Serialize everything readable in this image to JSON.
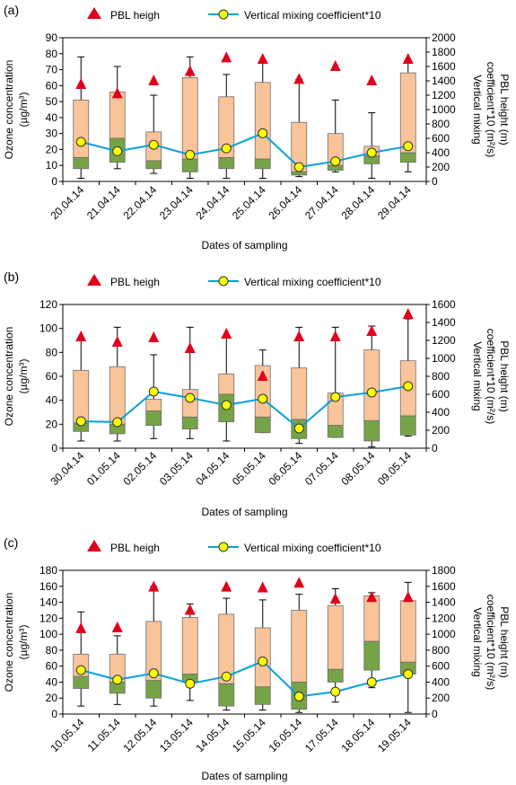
{
  "colors": {
    "box_upper": "#F9C49A",
    "box_lower": "#77A347",
    "box_stroke": "#6E6E6E",
    "pbl_marker": "#E0001B",
    "mix_line": "#0AA0DA",
    "mix_marker_fill": "#FFFF00",
    "mix_marker_stroke": "#333333"
  },
  "legend": {
    "pbl_label": "PBL heigh",
    "mix_label": "Vertical mixing coefficient*10"
  },
  "chart_data": [
    {
      "panel_label": "(a)",
      "type": "box",
      "xlabel": "Dates of sampling",
      "ylabel": "Ozone concentration (µg/m³)",
      "ylabel_line1": "Ozone concentration",
      "ylabel_line2": "(µg/m³)",
      "y2label_line1": "Vertical mixing",
      "y2label_line2": "coefficient*10 (m²/s)",
      "y2label_line3": "PBL height (m)",
      "ylim": [
        0,
        90
      ],
      "yticks": [
        0,
        10,
        20,
        30,
        40,
        50,
        60,
        70,
        80,
        90
      ],
      "y2lim": [
        0,
        2000
      ],
      "y2ticks": [
        0,
        200,
        400,
        600,
        800,
        1000,
        1200,
        1400,
        1600,
        1800,
        2000
      ],
      "categories": [
        "20.04.14",
        "21.04.14",
        "22.04.14",
        "23.04.14",
        "24.04.14",
        "25.04.14",
        "26.04.14",
        "27.04.14",
        "28.04.14",
        "29.04.14"
      ],
      "boxes": [
        {
          "min": 2,
          "q1": 8,
          "median": 15,
          "q3": 51,
          "max": 78
        },
        {
          "min": 8,
          "q1": 12,
          "median": 27,
          "q3": 56,
          "max": 72
        },
        {
          "min": 5,
          "q1": 8,
          "median": 13,
          "q3": 31,
          "max": 54
        },
        {
          "min": 2,
          "q1": 6,
          "median": 14,
          "q3": 65,
          "max": 78
        },
        {
          "min": 2,
          "q1": 8,
          "median": 15,
          "q3": 53,
          "max": 67
        },
        {
          "min": 2,
          "q1": 8,
          "median": 14,
          "q3": 62,
          "max": 75
        },
        {
          "min": 3,
          "q1": 4,
          "median": 6,
          "q3": 37,
          "max": 64
        },
        {
          "min": 6,
          "q1": 7,
          "median": 10,
          "q3": 30,
          "max": 51
        },
        {
          "min": 2,
          "q1": 11,
          "median": 16,
          "q3": 22,
          "max": 43
        },
        {
          "min": 6,
          "q1": 12,
          "median": 18,
          "q3": 68,
          "max": 75
        }
      ],
      "pbl_height": [
        1350,
        1220,
        1400,
        1530,
        1720,
        1700,
        1420,
        1600,
        1400,
        1700
      ],
      "mixing_coefficient_x10": [
        550,
        420,
        510,
        370,
        460,
        670,
        200,
        280,
        400,
        490
      ]
    },
    {
      "panel_label": "(b)",
      "type": "box",
      "xlabel": "Dates of sampling",
      "ylabel": "Ozone concentration (µg/m³)",
      "ylabel_line1": "Ozone concentration",
      "ylabel_line2": "(µg/m³)",
      "y2label_line1": "Vertical mixing",
      "y2label_line2": "coefficient*10 (m²/s)",
      "y2label_line3": "PBL height (m)",
      "ylim": [
        0,
        120
      ],
      "yticks": [
        0,
        20,
        40,
        60,
        80,
        100,
        120
      ],
      "y2lim": [
        0,
        1600
      ],
      "y2ticks": [
        0,
        200,
        400,
        600,
        800,
        1000,
        1200,
        1400,
        1600
      ],
      "categories": [
        "30.04.14",
        "01.05.14",
        "02.05.14",
        "03.05.14",
        "04.05.14",
        "05.05.14",
        "06.05.14",
        "07.05.14",
        "08.05.14",
        "09.05.14"
      ],
      "boxes": [
        {
          "min": 6,
          "q1": 14,
          "median": 21,
          "q3": 65,
          "max": 92
        },
        {
          "min": 6,
          "q1": 12,
          "median": 20,
          "q3": 68,
          "max": 101
        },
        {
          "min": 8,
          "q1": 19,
          "median": 31,
          "q3": 41,
          "max": 78
        },
        {
          "min": 8,
          "q1": 16,
          "median": 26,
          "q3": 49,
          "max": 101
        },
        {
          "min": 6,
          "q1": 22,
          "median": 45,
          "q3": 62,
          "max": 94
        },
        {
          "min": 13,
          "q1": 13,
          "median": 26,
          "q3": 69,
          "max": 82
        },
        {
          "min": 4,
          "q1": 8,
          "median": 24,
          "q3": 67,
          "max": 101
        },
        {
          "min": 9,
          "q1": 9,
          "median": 19,
          "q3": 46,
          "max": 101
        },
        {
          "min": 1,
          "q1": 6,
          "median": 23,
          "q3": 82,
          "max": 102
        },
        {
          "min": 10,
          "q1": 11,
          "median": 27,
          "q3": 73,
          "max": 108
        }
      ],
      "pbl_height": [
        1240,
        1180,
        1230,
        1110,
        1270,
        800,
        1240,
        1240,
        1300,
        1490
      ],
      "mixing_coefficient_x10": [
        300,
        290,
        630,
        560,
        480,
        550,
        220,
        570,
        620,
        690
      ]
    },
    {
      "panel_label": "(c)",
      "type": "box",
      "xlabel": "Dates of sampling",
      "ylabel": "Ozone concentration (µg/m³)",
      "ylabel_line1": "Ozone concentration",
      "ylabel_line2": "(µg/m³)",
      "y2label_line1": "Vertical mixing",
      "y2label_line2": "coefficient*10 (m²/s)",
      "y2label_line3": "PBL height (m)",
      "ylim": [
        0,
        180
      ],
      "yticks": [
        0,
        20,
        40,
        60,
        80,
        100,
        120,
        140,
        160,
        180
      ],
      "y2lim": [
        0,
        1800
      ],
      "y2ticks": [
        0,
        200,
        400,
        600,
        800,
        1000,
        1200,
        1400,
        1600,
        1800
      ],
      "categories": [
        "10.05.14",
        "11.05.14",
        "12.05.14",
        "13.05.14",
        "14.05.14",
        "15.05.14",
        "16.05.14",
        "17.05.14",
        "18.05.14",
        "19.05.14"
      ],
      "boxes": [
        {
          "min": 10,
          "q1": 32,
          "median": 47,
          "q3": 75,
          "max": 128
        },
        {
          "min": 12,
          "q1": 26,
          "median": 40,
          "q3": 75,
          "max": 98
        },
        {
          "min": 10,
          "q1": 20,
          "median": 42,
          "q3": 116,
          "max": 160
        },
        {
          "min": 17,
          "q1": 40,
          "median": 50,
          "q3": 121,
          "max": 138
        },
        {
          "min": 5,
          "q1": 10,
          "median": 38,
          "q3": 125,
          "max": 145
        },
        {
          "min": 5,
          "q1": 12,
          "median": 34,
          "q3": 108,
          "max": 143
        },
        {
          "min": 2,
          "q1": 6,
          "median": 40,
          "q3": 130,
          "max": 150
        },
        {
          "min": 15,
          "q1": 40,
          "median": 56,
          "q3": 136,
          "max": 157
        },
        {
          "min": 33,
          "q1": 55,
          "median": 91,
          "q3": 148,
          "max": 152
        },
        {
          "min": 2,
          "q1": 50,
          "median": 65,
          "q3": 142,
          "max": 165
        }
      ],
      "pbl_height": [
        1070,
        1080,
        1590,
        1300,
        1590,
        1580,
        1640,
        1440,
        1460,
        1460
      ],
      "mixing_coefficient_x10": [
        550,
        430,
        510,
        380,
        470,
        660,
        220,
        280,
        400,
        500
      ]
    }
  ]
}
